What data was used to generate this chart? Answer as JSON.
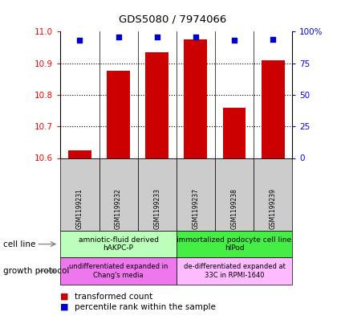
{
  "title": "GDS5080 / 7974066",
  "samples": [
    "GSM1199231",
    "GSM1199232",
    "GSM1199233",
    "GSM1199237",
    "GSM1199238",
    "GSM1199239"
  ],
  "transformed_count": [
    10.625,
    10.875,
    10.935,
    10.975,
    10.76,
    10.91
  ],
  "percentile_rank": [
    93,
    96,
    96,
    96,
    93,
    94
  ],
  "ylim": [
    10.6,
    11.0
  ],
  "percentile_ylim": [
    0,
    100
  ],
  "yticks": [
    10.6,
    10.7,
    10.8,
    10.9,
    11.0
  ],
  "right_yticks": [
    0,
    25,
    50,
    75,
    100
  ],
  "right_yticklabels": [
    "0",
    "25",
    "50",
    "75",
    "100%"
  ],
  "bar_color": "#cc0000",
  "dot_color": "#0000cc",
  "bar_width": 0.6,
  "cell_line_color1": "#bbffbb",
  "cell_line_color2": "#44ee44",
  "growth_color1": "#ee77ee",
  "growth_color2": "#ffbbff",
  "tick_box_color": "#cccccc",
  "cell_line_label1": "amniotic-fluid derived\nhAKPC-P",
  "cell_line_label2": "immortalized podocyte cell line\nhIPod",
  "growth_label1": "undifferentiated expanded in\nChang's media",
  "growth_label2": "de-differentiated expanded at\n33C in RPMI-1640",
  "legend_label1": "transformed count",
  "legend_label2": "percentile rank within the sample",
  "cell_line_left_label": "cell line",
  "growth_left_label": "growth protocol"
}
